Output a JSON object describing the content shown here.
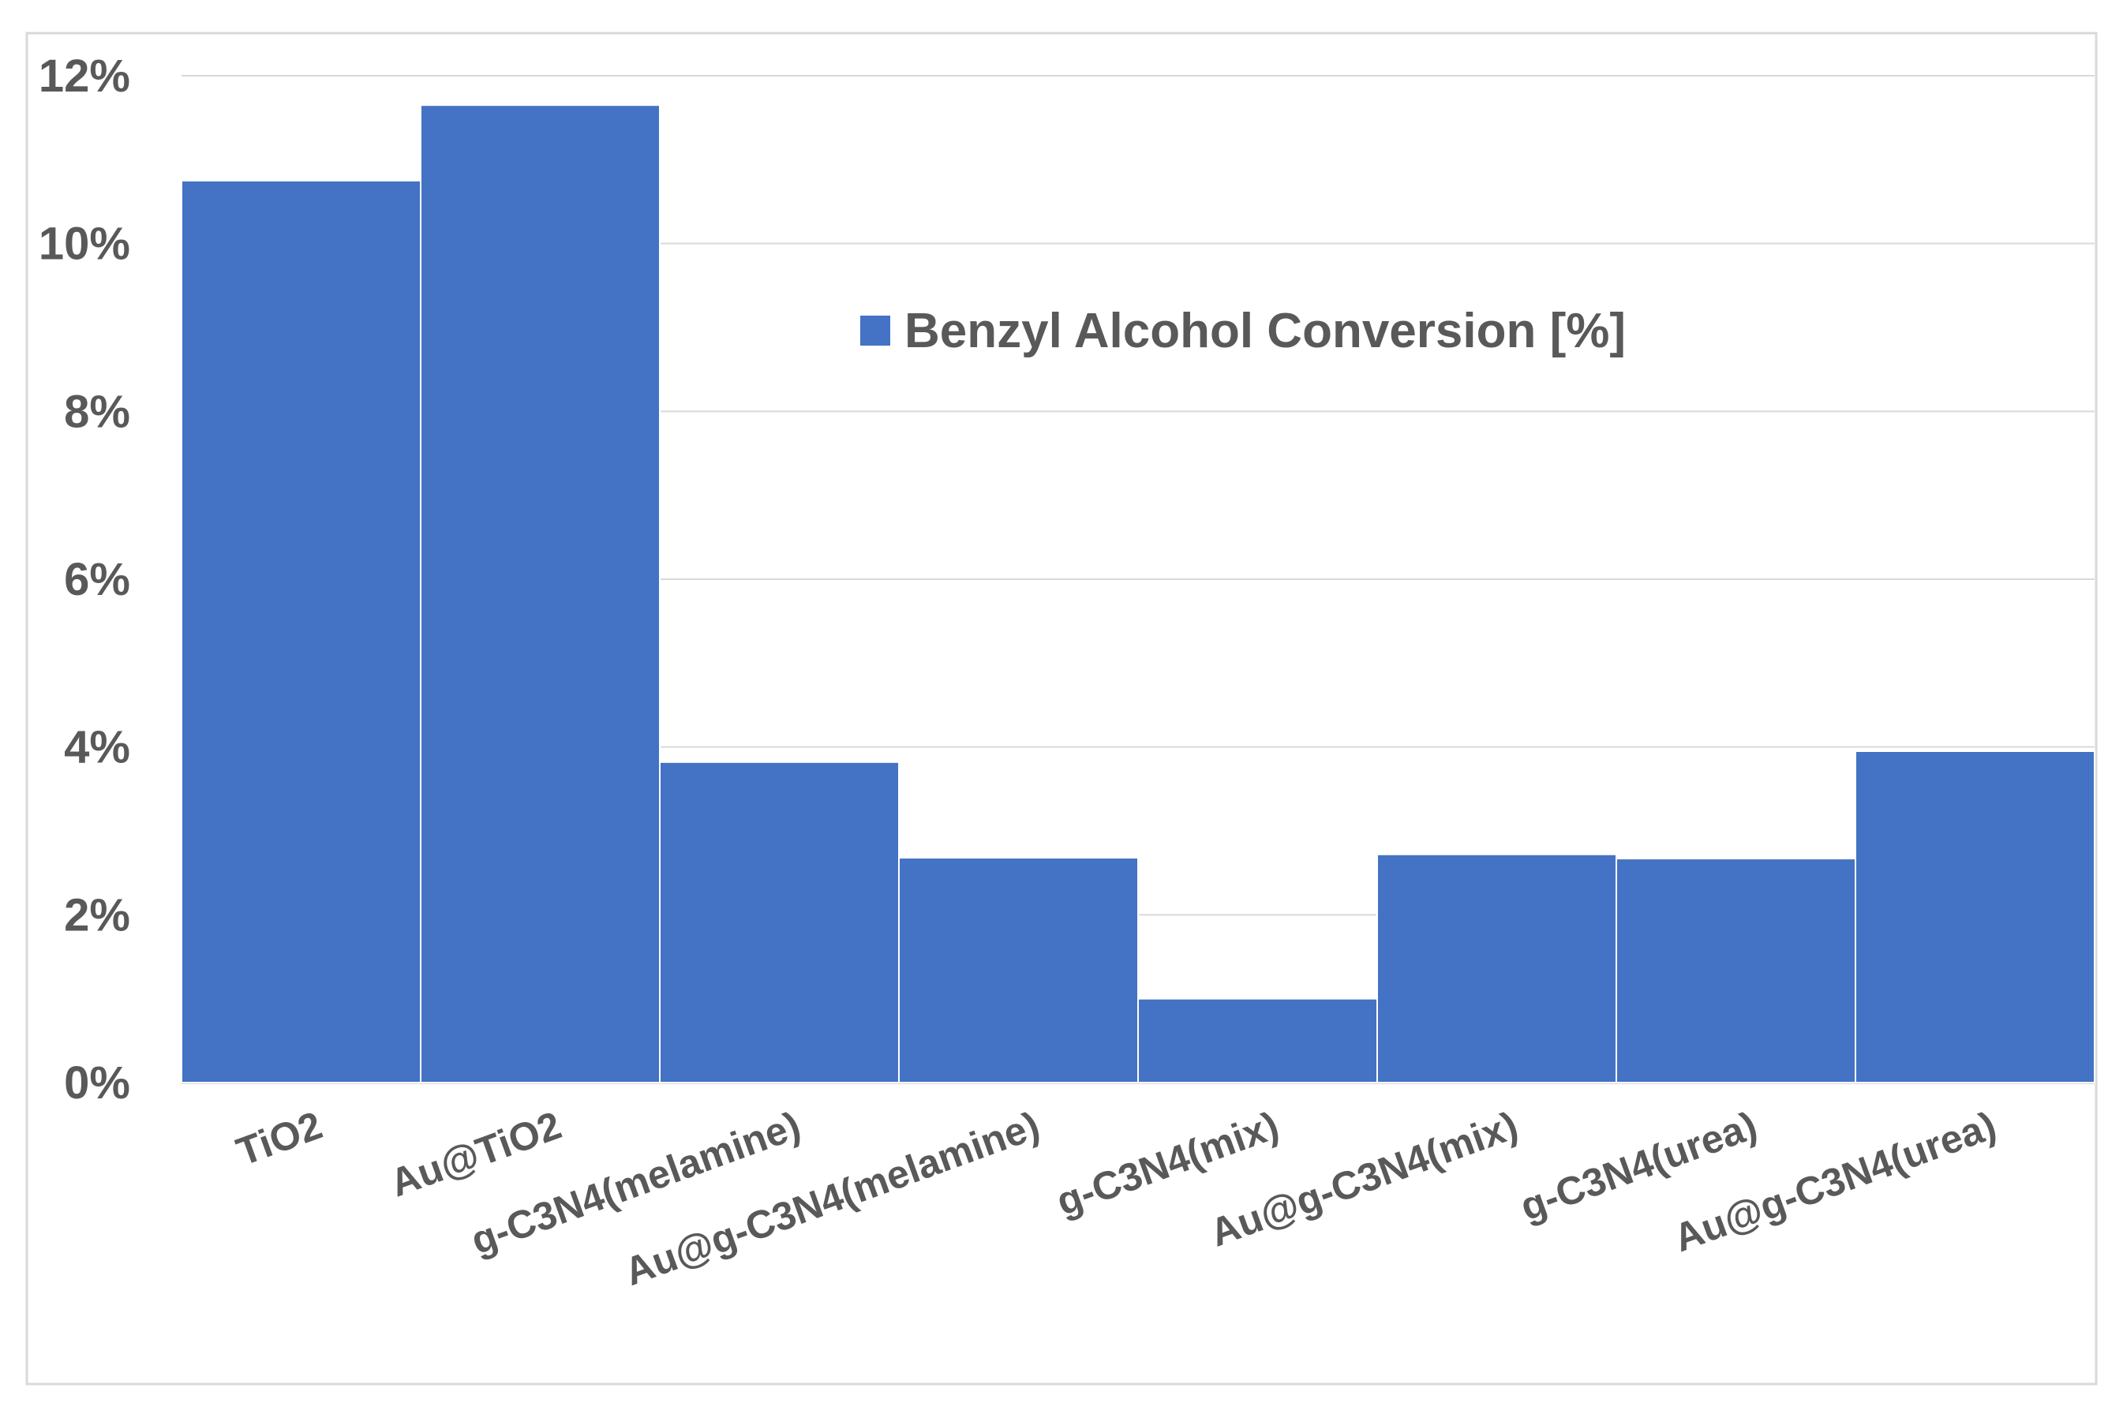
{
  "chart_data": {
    "type": "bar",
    "title": "",
    "xlabel": "",
    "ylabel": "",
    "categories": [
      "TiO2",
      "Au@TiO2",
      "g-C3N4(melamine)",
      "Au@g-C3N4(melamine)",
      "g-C3N4(mix)",
      "Au@g-C3N4(mix)",
      "g-C3N4(urea)",
      "Au@g-C3N4(urea)"
    ],
    "series": [
      {
        "name": "Benzyl Alcohol Conversion [%]",
        "values": [
          10.75,
          11.65,
          3.82,
          2.68,
          1.0,
          2.72,
          2.67,
          3.95
        ],
        "color": "#4472C4"
      }
    ],
    "ylim": [
      0,
      12
    ],
    "yticks": [
      0,
      2,
      4,
      6,
      8,
      10,
      12
    ],
    "ytick_labels": [
      "0%",
      "2%",
      "4%",
      "6%",
      "8%",
      "10%",
      "12%"
    ],
    "grid": true,
    "legend_position": "upper-center"
  },
  "colors": {
    "bar": "#4472C4",
    "grid": "#d9d9d9",
    "text": "#595959",
    "frame": "#d9d9d9"
  }
}
